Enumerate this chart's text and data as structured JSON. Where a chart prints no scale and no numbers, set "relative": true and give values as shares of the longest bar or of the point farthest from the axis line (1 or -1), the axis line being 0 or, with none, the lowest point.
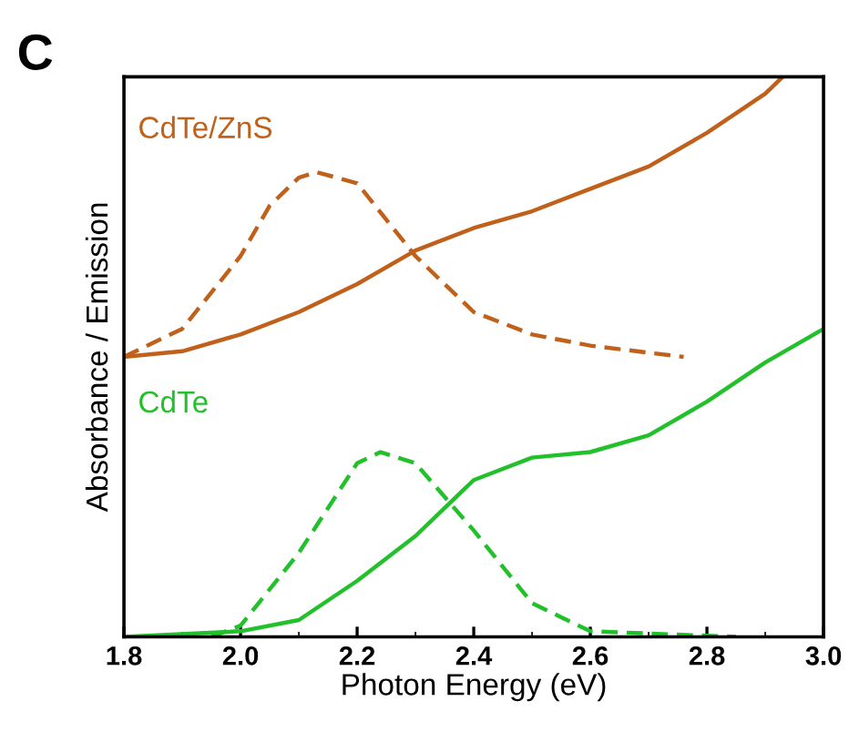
{
  "chart_data": {
    "type": "line",
    "relative": true,
    "title": "C",
    "xlabel": "Photon Energy (eV)",
    "ylabel": "Absorbance / Emission",
    "xlim": [
      1.8,
      3.0
    ],
    "xticks": [
      {
        "value": 1.8,
        "label": "1.8"
      },
      {
        "value": 2.0,
        "label": "2.0"
      },
      2.2,
      2.4,
      2.6,
      2.8,
      {
        "value": 3.0,
        "label": "3.0"
      }
    ],
    "grid": false,
    "legend": false,
    "series": [
      {
        "name": "CdTe/ZnS",
        "color": "#c0601a",
        "line_style": "solid",
        "x": [
          1.8,
          1.9,
          2.0,
          2.1,
          2.2,
          2.3,
          2.4,
          2.5,
          2.6,
          2.7,
          2.8,
          2.9,
          2.93
        ],
        "values": [
          0.5,
          0.51,
          0.54,
          0.58,
          0.63,
          0.69,
          0.73,
          0.76,
          0.8,
          0.84,
          0.9,
          0.97,
          1.0
        ]
      },
      {
        "color": "#c0601a",
        "line_style": "dashed",
        "x": [
          1.8,
          1.9,
          2.0,
          2.05,
          2.1,
          2.13,
          2.2,
          2.3,
          2.4,
          2.5,
          2.6,
          2.76
        ],
        "values": [
          0.5,
          0.55,
          0.68,
          0.77,
          0.82,
          0.83,
          0.81,
          0.68,
          0.58,
          0.54,
          0.52,
          0.5
        ]
      },
      {
        "name": "CdTe",
        "color": "#22c02a",
        "line_style": "solid",
        "x": [
          1.8,
          2.0,
          2.1,
          2.2,
          2.3,
          2.4,
          2.5,
          2.6,
          2.7,
          2.8,
          2.9,
          3.0
        ],
        "values": [
          0.0,
          0.01,
          0.03,
          0.1,
          0.18,
          0.28,
          0.32,
          0.33,
          0.36,
          0.42,
          0.49,
          0.55
        ]
      },
      {
        "color": "#22c02a",
        "line_style": "dashed",
        "x": [
          1.95,
          2.0,
          2.1,
          2.2,
          2.24,
          2.3,
          2.4,
          2.5,
          2.6,
          2.85
        ],
        "values": [
          0.0,
          0.02,
          0.15,
          0.31,
          0.33,
          0.31,
          0.19,
          0.06,
          0.01,
          0.0
        ]
      }
    ]
  }
}
